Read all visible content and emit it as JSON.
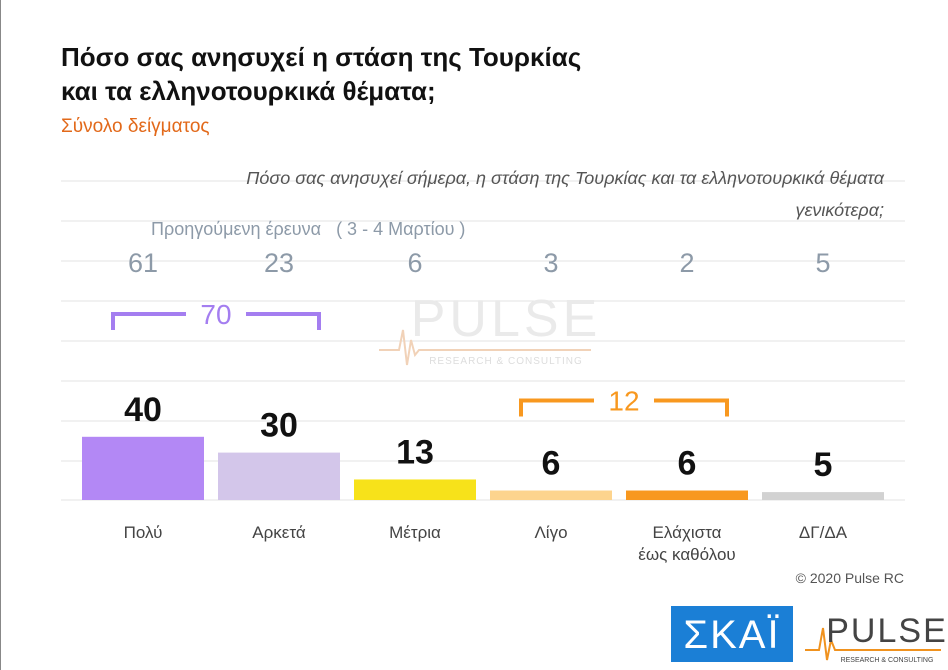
{
  "chart_data": {
    "type": "bar",
    "title_lines": [
      "Πόσο σας ανησυχεί η στάση της Τουρκίας",
      "και τα ελληνοτουρκικά θέματα;"
    ],
    "subtitle": "Σύνολο δείγματος",
    "question_lines": [
      "Πόσο σας ανησυχεί σήμερα, η στάση της Τουρκίας και τα ελληνοτουρκικά θέματα",
      "γενικότερα;"
    ],
    "categories": [
      "Πολύ",
      "Αρκετά",
      "Μέτρια",
      "Λίγο",
      "Ελάχιστα\nέως καθόλου",
      "ΔΓ/ΔΑ"
    ],
    "values": [
      40,
      30,
      13,
      6,
      6,
      5
    ],
    "colors": [
      "#b388f5",
      "#d3c6ea",
      "#f7e21a",
      "#fdd48e",
      "#f8981f",
      "#d2d2d2"
    ],
    "previous": {
      "label": "Προηγούμενη έρευνα   ( 3 - 4 Μαρτίου )",
      "values": [
        61,
        23,
        6,
        3,
        2,
        5
      ]
    },
    "brackets": [
      {
        "value": 70,
        "color": "#a47ef0",
        "categories": [
          "Πολύ",
          "Αρκετά"
        ]
      },
      {
        "value": 12,
        "color": "#f8981f",
        "categories": [
          "Λίγο",
          "Ελάχιστα\nέως καθόλου"
        ]
      }
    ],
    "watermark": {
      "name": "PULSE",
      "sub": "RESEARCH & CONSULTING"
    },
    "copyright": "© 2020 Pulse RC",
    "logos": {
      "skai": "ΣΚΑΪ",
      "pulse": "PULSE",
      "pulse_sub": "RESEARCH & CONSULTING"
    }
  }
}
